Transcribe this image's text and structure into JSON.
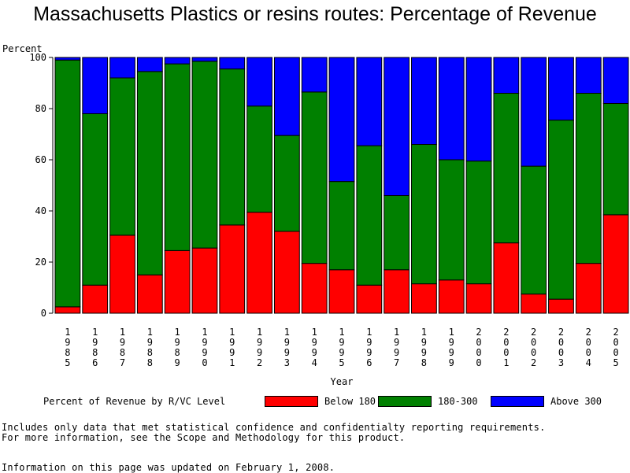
{
  "chart_data": {
    "type": "bar",
    "stacked": true,
    "title": "Massachusetts Plastics or resins routes: Percentage of Revenue",
    "ylabel": "Percent",
    "xlabel": "Year",
    "ylim": [
      0,
      100
    ],
    "yticks": [
      0,
      20,
      40,
      60,
      80,
      100
    ],
    "grid": false,
    "legend_position": "bottom",
    "legend_title": "Percent of Revenue by R/VC Level",
    "categories": [
      "1985",
      "1986",
      "1987",
      "1988",
      "1989",
      "1990",
      "1991",
      "1992",
      "1993",
      "1994",
      "1995",
      "1996",
      "1997",
      "1998",
      "1999",
      "2000",
      "2001",
      "2002",
      "2003",
      "2004",
      "2005"
    ],
    "series": [
      {
        "name": "Below 180",
        "color": "#ff0000",
        "values": [
          2.5,
          11,
          30.5,
          15,
          24.5,
          25.5,
          34.5,
          39.5,
          32,
          19.5,
          17,
          11,
          17,
          11.5,
          13,
          11.5,
          27.5,
          7.5,
          5.5,
          19.5,
          38.5
        ]
      },
      {
        "name": "180-300",
        "color": "#008000",
        "values": [
          96.5,
          67,
          61.5,
          79.5,
          73,
          73,
          61,
          41.5,
          37.5,
          67,
          34.5,
          54.5,
          29,
          54.5,
          47,
          48,
          58.5,
          50,
          70,
          66.5,
          43.5
        ]
      },
      {
        "name": "Above 300",
        "color": "#0000ff",
        "values": [
          1,
          22,
          8,
          5.5,
          2.5,
          1.5,
          4.5,
          19,
          30.5,
          13.5,
          48.5,
          34.5,
          54,
          34,
          40,
          40.5,
          14,
          42.5,
          24.5,
          14,
          18
        ]
      }
    ]
  },
  "notes": {
    "line1": "Includes only data that met statistical confidence and confidentialty reporting requirements.",
    "line2": "For more information, see the Scope and Methodology for this product.",
    "line3": "Information on this page was updated on February 1, 2008."
  }
}
